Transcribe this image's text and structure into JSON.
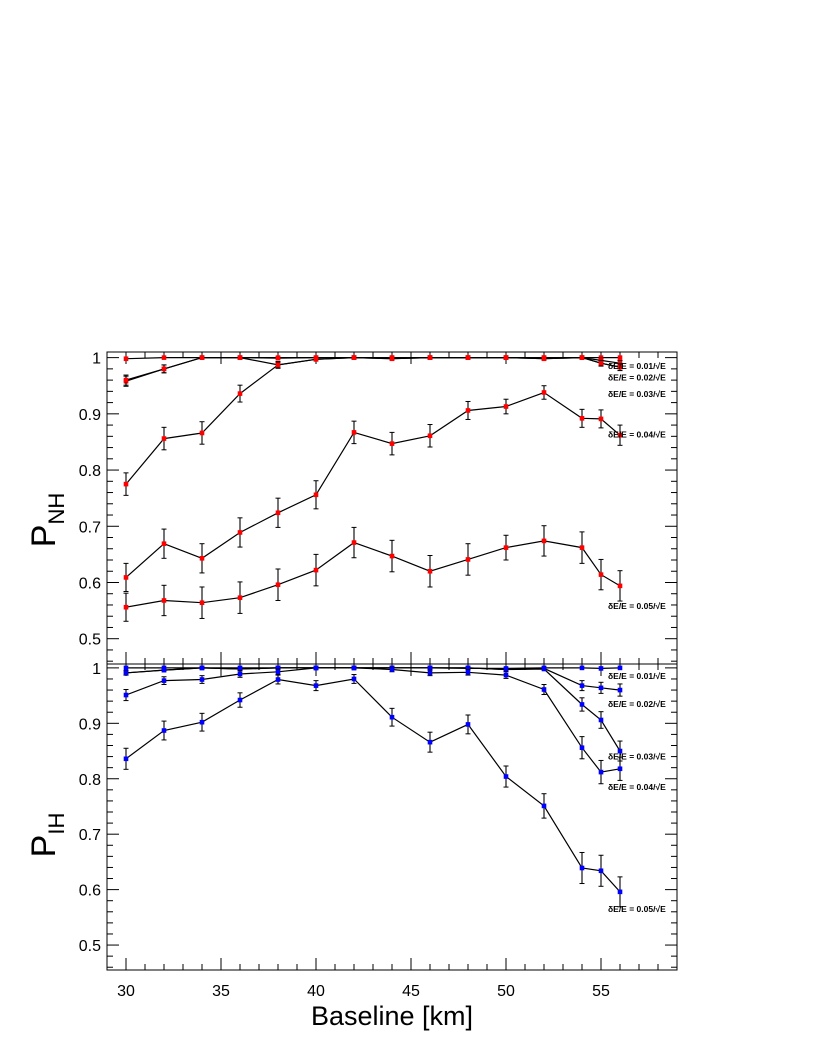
{
  "chart_data": [
    {
      "type": "line",
      "panel": "top",
      "ylabel_main": "P",
      "ylabel_sub": "NH",
      "xlabel": "",
      "xlim": [
        29,
        59
      ],
      "ylim": [
        0.455,
        1.01
      ],
      "yticks": [
        0.5,
        0.6,
        0.7,
        0.8,
        0.9,
        1
      ],
      "ytick_labels": [
        "0.5",
        "0.6",
        "0.7",
        "0.8",
        "0.9",
        "1"
      ],
      "marker_color": "#ff0000",
      "series": [
        {
          "name": "δE/E = 0.01/√E",
          "x": [
            30,
            32,
            34,
            36,
            38,
            40,
            42,
            44,
            46,
            48,
            50,
            52,
            54,
            55,
            56
          ],
          "y": [
            0.998,
            1.0,
            1.0,
            1.0,
            1.0,
            1.0,
            1.0,
            1.0,
            1.0,
            1.0,
            1.0,
            1.0,
            1.0,
            1.0,
            1.0
          ],
          "err": [
            0.002,
            0.002,
            0.002,
            0.002,
            0.002,
            0.002,
            0.002,
            0.002,
            0.002,
            0.002,
            0.002,
            0.002,
            0.002,
            0.002,
            0.002
          ]
        },
        {
          "name": "δE/E = 0.02/√E",
          "x": [
            30,
            32,
            34,
            36,
            38,
            40,
            42,
            44,
            46,
            48,
            50,
            52,
            54,
            55,
            56
          ],
          "y": [
            0.958,
            0.98,
            1.0,
            1.0,
            0.999,
            1.0,
            1.0,
            1.0,
            1.0,
            1.0,
            1.0,
            1.0,
            1.0,
            0.995,
            0.99
          ],
          "err": [
            0.009,
            0.007,
            0.003,
            0.003,
            0.003,
            0.003,
            0.003,
            0.003,
            0.003,
            0.003,
            0.003,
            0.003,
            0.003,
            0.004,
            0.005
          ]
        },
        {
          "name": "δE/E = 0.03/√E",
          "x": [
            30,
            32,
            34,
            36,
            38,
            40,
            42,
            44,
            46,
            48,
            50,
            52,
            54,
            55,
            56
          ],
          "y": [
            0.96,
            0.98,
            1.0,
            1.0,
            0.987,
            0.997,
            1.0,
            0.998,
            1.0,
            1.0,
            1.0,
            0.998,
            1.0,
            0.99,
            0.983
          ],
          "err": [
            0.009,
            0.007,
            0.003,
            0.003,
            0.005,
            0.003,
            0.003,
            0.003,
            0.003,
            0.003,
            0.003,
            0.003,
            0.003,
            0.005,
            0.006
          ]
        },
        {
          "name": "δE/E = 0.04/√E",
          "x": [
            30,
            32,
            34,
            36,
            38,
            40,
            42,
            44,
            46,
            48,
            50,
            52,
            54,
            55,
            56
          ],
          "y": [
            0.775,
            0.856,
            0.866,
            0.936,
            0.987,
            0.997,
            1.0,
            0.998,
            1.0,
            1.0,
            1.0,
            0.998,
            1.0,
            0.99,
            0.983
          ],
          "err": [
            0.02,
            0.02,
            0.02,
            0.015,
            0.006,
            0.003,
            0.003,
            0.003,
            0.003,
            0.003,
            0.003,
            0.003,
            0.003,
            0.005,
            0.006
          ]
        },
        {
          "name": "δE/E = 0.05/√E",
          "x": [
            30,
            32,
            34,
            36,
            38,
            40,
            42,
            44,
            46,
            48,
            50,
            52,
            54,
            55,
            56
          ],
          "y": [
            0.609,
            0.669,
            0.643,
            0.689,
            0.724,
            0.756,
            0.867,
            0.847,
            0.861,
            0.906,
            0.913,
            0.938,
            0.892,
            0.891,
            0.862
          ],
          "err": [
            0.025,
            0.026,
            0.026,
            0.026,
            0.026,
            0.025,
            0.02,
            0.02,
            0.02,
            0.016,
            0.013,
            0.012,
            0.016,
            0.016,
            0.018
          ]
        },
        {
          "name": "",
          "x": [
            30,
            32,
            34,
            36,
            38,
            40,
            42,
            44,
            46,
            48,
            50,
            52,
            54,
            55,
            56
          ],
          "y": [
            0.556,
            0.568,
            0.564,
            0.573,
            0.596,
            0.622,
            0.671,
            0.647,
            0.62,
            0.641,
            0.662,
            0.674,
            0.662,
            0.614,
            0.594
          ],
          "err": [
            0.025,
            0.027,
            0.028,
            0.028,
            0.028,
            0.028,
            0.027,
            0.028,
            0.028,
            0.028,
            0.022,
            0.027,
            0.028,
            0.027,
            0.027
          ]
        }
      ],
      "labels": [
        {
          "text": "δE/E = 0.01/√E",
          "y": 0.985
        },
        {
          "text": "δE/E = 0.02/√E",
          "y": 0.965
        },
        {
          "text": "δE/E = 0.03/√E",
          "y": 0.935
        },
        {
          "text": "δE/E = 0.04/√E",
          "y": 0.863
        },
        {
          "text": "δE/E = 0.05/√E",
          "y": 0.558
        }
      ]
    },
    {
      "type": "line",
      "panel": "bottom",
      "ylabel_main": "P",
      "ylabel_sub": "IH",
      "xlabel": "Baseline [km]",
      "xlim": [
        29,
        59
      ],
      "ylim": [
        0.455,
        1.007
      ],
      "xticks": [
        30,
        35,
        40,
        45,
        50,
        55
      ],
      "xtick_labels": [
        "30",
        "35",
        "40",
        "45",
        "50",
        "55"
      ],
      "yticks": [
        0.5,
        0.6,
        0.7,
        0.8,
        0.9,
        1
      ],
      "ytick_labels": [
        "0.5",
        "0.6",
        "0.7",
        "0.8",
        "0.9",
        "1"
      ],
      "marker_color": "#0000ff",
      "series": [
        {
          "name": "δE/E = 0.01/√E",
          "x": [
            30,
            32,
            34,
            36,
            38,
            40,
            42,
            44,
            46,
            48,
            50,
            52,
            54,
            55,
            56
          ],
          "y": [
            1.0,
            1.0,
            1.0,
            1.0,
            1.0,
            1.0,
            1.0,
            1.0,
            1.0,
            0.999,
            0.999,
            1.0,
            1.0,
            0.999,
            1.0
          ],
          "err": [
            0.002,
            0.002,
            0.002,
            0.002,
            0.002,
            0.002,
            0.002,
            0.002,
            0.002,
            0.002,
            0.002,
            0.002,
            0.002,
            0.002,
            0.002
          ]
        },
        {
          "name": "δE/E = 0.02/√E",
          "x": [
            30,
            32,
            34,
            36,
            38,
            40,
            42,
            44,
            46,
            48,
            50,
            52,
            54,
            55,
            56
          ],
          "y": [
            0.991,
            0.996,
            1.0,
            0.998,
            1.0,
            1.0,
            1.0,
            1.0,
            1.0,
            1.0,
            0.997,
            0.999,
            0.968,
            0.964,
            0.96
          ],
          "err": [
            0.004,
            0.003,
            0.002,
            0.003,
            0.002,
            0.002,
            0.002,
            0.002,
            0.002,
            0.002,
            0.003,
            0.003,
            0.009,
            0.01,
            0.011
          ]
        },
        {
          "name": "δE/E = 0.03/√E",
          "x": [
            30,
            32,
            34,
            36,
            38,
            40,
            42,
            44,
            46,
            48,
            50,
            52,
            54,
            55,
            56
          ],
          "y": [
            0.991,
            0.996,
            1.0,
            0.998,
            1.0,
            1.0,
            1.0,
            1.0,
            1.0,
            1.0,
            0.997,
            0.998,
            0.934,
            0.906,
            0.85
          ],
          "err": [
            0.004,
            0.003,
            0.002,
            0.003,
            0.002,
            0.002,
            0.002,
            0.002,
            0.002,
            0.002,
            0.003,
            0.003,
            0.012,
            0.015,
            0.018
          ]
        },
        {
          "name": "δE/E = 0.04/√E",
          "x": [
            30,
            32,
            34,
            36,
            38,
            40,
            42,
            44,
            46,
            48,
            50,
            52,
            54,
            55,
            56
          ],
          "y": [
            0.951,
            0.977,
            0.979,
            0.989,
            0.993,
            1.0,
            1.0,
            0.997,
            0.991,
            0.992,
            0.987,
            0.961,
            0.856,
            0.812,
            0.818
          ],
          "err": [
            0.01,
            0.007,
            0.007,
            0.006,
            0.005,
            0.003,
            0.003,
            0.004,
            0.005,
            0.005,
            0.006,
            0.009,
            0.02,
            0.021,
            0.021
          ]
        },
        {
          "name": "δE/E = 0.05/√E",
          "x": [
            30,
            32,
            34,
            36,
            38,
            40,
            42,
            44,
            46,
            48,
            50,
            52,
            54,
            55,
            56
          ],
          "y": [
            0.836,
            0.887,
            0.902,
            0.942,
            0.979,
            0.968,
            0.98,
            0.911,
            0.866,
            0.898,
            0.804,
            0.751,
            0.639,
            0.634,
            0.596
          ],
          "err": [
            0.019,
            0.017,
            0.016,
            0.013,
            0.008,
            0.009,
            0.008,
            0.016,
            0.018,
            0.017,
            0.019,
            0.022,
            0.028,
            0.028,
            0.027
          ]
        }
      ],
      "labels": [
        {
          "text": "δE/E = 0.01/√E",
          "y": 0.985
        },
        {
          "text": "δE/E = 0.02/√E",
          "y": 0.935
        },
        {
          "text": "δE/E = 0.03/√E",
          "y": 0.84
        },
        {
          "text": "δE/E = 0.04/√E",
          "y": 0.785
        },
        {
          "text": "δE/E = 0.05/√E",
          "y": 0.565
        }
      ]
    }
  ]
}
